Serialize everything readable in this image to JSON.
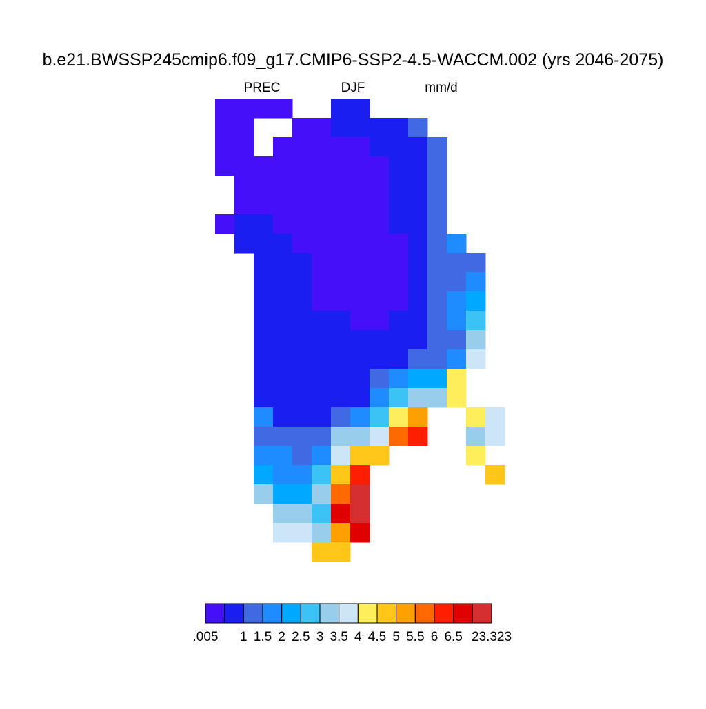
{
  "title": "b.e21.BWSSP245cmip6.f09_g17.CMIP6-SSP2-4.5-WACCM.002 (yrs 2046-2075)",
  "left_label": "PREC",
  "center_label": "DJF",
  "right_label": "mm/d",
  "colorbar": {
    "colors": [
      "#4410f8",
      "#1a1ef0",
      "#4169e1",
      "#1e8cff",
      "#00a8ff",
      "#3cc3f5",
      "#98cdeb",
      "#cce6f7",
      "#ffee5c",
      "#ffc61a",
      "#ffa000",
      "#ff6a00",
      "#ff1e00",
      "#e00000",
      "#d42e2e"
    ],
    "labels": [
      ".005",
      null,
      "1",
      "1.5",
      "2",
      "2.5",
      "3",
      "3.5",
      "4",
      "4.5",
      "5",
      "5.5",
      "6",
      "6.5",
      null,
      "23.323"
    ]
  },
  "map": {
    "cells": [
      [
        0,
        0,
        0,
        0,
        null,
        null,
        1,
        1,
        null,
        null,
        null,
        null,
        null,
        null,
        null
      ],
      [
        0,
        0,
        null,
        null,
        0,
        0,
        1,
        1,
        1,
        1,
        2,
        null,
        null,
        null,
        null
      ],
      [
        0,
        0,
        null,
        0,
        0,
        0,
        0,
        0,
        1,
        1,
        1,
        2,
        null,
        null,
        null
      ],
      [
        0,
        0,
        0,
        0,
        0,
        0,
        0,
        0,
        0,
        1,
        1,
        2,
        null,
        null,
        null
      ],
      [
        null,
        0,
        0,
        0,
        0,
        0,
        0,
        0,
        0,
        1,
        1,
        2,
        null,
        null,
        null
      ],
      [
        null,
        0,
        0,
        0,
        0,
        0,
        0,
        0,
        0,
        1,
        1,
        2,
        null,
        null,
        null
      ],
      [
        0,
        1,
        1,
        0,
        0,
        0,
        0,
        0,
        0,
        1,
        1,
        2,
        null,
        null,
        null
      ],
      [
        null,
        1,
        1,
        1,
        0,
        0,
        0,
        0,
        0,
        0,
        1,
        2,
        3,
        null,
        null
      ],
      [
        null,
        null,
        1,
        1,
        1,
        0,
        0,
        0,
        0,
        0,
        1,
        2,
        2,
        2,
        null
      ],
      [
        null,
        null,
        1,
        1,
        1,
        0,
        0,
        0,
        0,
        0,
        1,
        2,
        2,
        3,
        null
      ],
      [
        null,
        null,
        1,
        1,
        1,
        0,
        0,
        0,
        0,
        0,
        1,
        2,
        3,
        4,
        null
      ],
      [
        null,
        null,
        1,
        1,
        1,
        1,
        1,
        0,
        0,
        1,
        1,
        2,
        3,
        5,
        null
      ],
      [
        null,
        null,
        1,
        1,
        1,
        1,
        1,
        1,
        1,
        1,
        1,
        2,
        2,
        6,
        null
      ],
      [
        null,
        null,
        1,
        1,
        1,
        1,
        1,
        1,
        1,
        1,
        2,
        2,
        3,
        7,
        null
      ],
      [
        null,
        null,
        1,
        1,
        1,
        1,
        1,
        1,
        2,
        3,
        4,
        4,
        8,
        null,
        null
      ],
      [
        null,
        null,
        1,
        1,
        1,
        1,
        1,
        1,
        3,
        5,
        6,
        6,
        8,
        null,
        null
      ],
      [
        null,
        null,
        3,
        1,
        1,
        1,
        2,
        3,
        5,
        8,
        10,
        null,
        null,
        8,
        7
      ],
      [
        null,
        null,
        2,
        2,
        2,
        2,
        6,
        6,
        7,
        11,
        12,
        null,
        null,
        6,
        7
      ],
      [
        null,
        null,
        3,
        3,
        2,
        3,
        7,
        9,
        9,
        null,
        null,
        null,
        null,
        8,
        null
      ],
      [
        null,
        null,
        4,
        3,
        3,
        5,
        9,
        12,
        null,
        null,
        null,
        null,
        null,
        null,
        9
      ],
      [
        null,
        null,
        6,
        4,
        4,
        6,
        11,
        14,
        null,
        null,
        null,
        null,
        null,
        null,
        null
      ],
      [
        null,
        null,
        null,
        6,
        6,
        5,
        13,
        14,
        null,
        null,
        null,
        null,
        null,
        null,
        null
      ],
      [
        null,
        null,
        null,
        7,
        7,
        6,
        10,
        13,
        null,
        null,
        null,
        null,
        null,
        null,
        null
      ],
      [
        null,
        null,
        null,
        null,
        null,
        9,
        9,
        null,
        null,
        null,
        null,
        null,
        null,
        null,
        null
      ]
    ]
  }
}
